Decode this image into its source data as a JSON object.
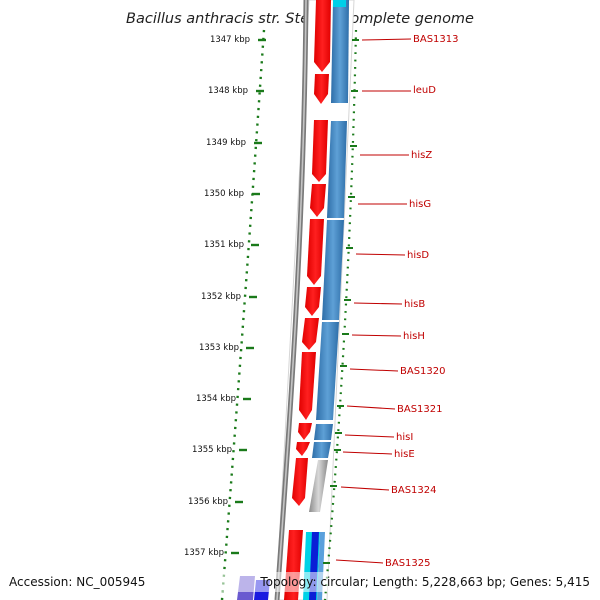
{
  "title": "Bacillus anthracis str. Sterne, complete genome",
  "accession": "Accession: NC_005945",
  "topology": "Topology: circular; Length: 5,228,663 bp; Genes: 5,415",
  "kbp_ticks": [
    {
      "label": "1347 kbp"
    },
    {
      "label": "1348 kbp"
    },
    {
      "label": "1349 kbp"
    },
    {
      "label": "1350 kbp"
    },
    {
      "label": "1351 kbp"
    },
    {
      "label": "1352 kbp"
    },
    {
      "label": "1353 kbp"
    },
    {
      "label": "1354 kbp"
    },
    {
      "label": "1355 kbp"
    },
    {
      "label": "1356 kbp"
    },
    {
      "label": "1357 kbp"
    }
  ],
  "genes": [
    {
      "name": "BAS1313"
    },
    {
      "name": "leuD"
    },
    {
      "name": "hisZ"
    },
    {
      "name": "hisG"
    },
    {
      "name": "hisD"
    },
    {
      "name": "hisB"
    },
    {
      "name": "hisH"
    },
    {
      "name": "BAS1320"
    },
    {
      "name": "BAS1321"
    },
    {
      "name": "hisI"
    },
    {
      "name": "hisE"
    },
    {
      "name": "BAS1324"
    },
    {
      "name": "BAS1325"
    }
  ],
  "colors": {
    "forward_cds": "#ff0000",
    "reverse_track": "#4a8cc4",
    "tick_green": "#1a7a1a",
    "gene_label": "#c00000",
    "backbone": "#888888"
  }
}
